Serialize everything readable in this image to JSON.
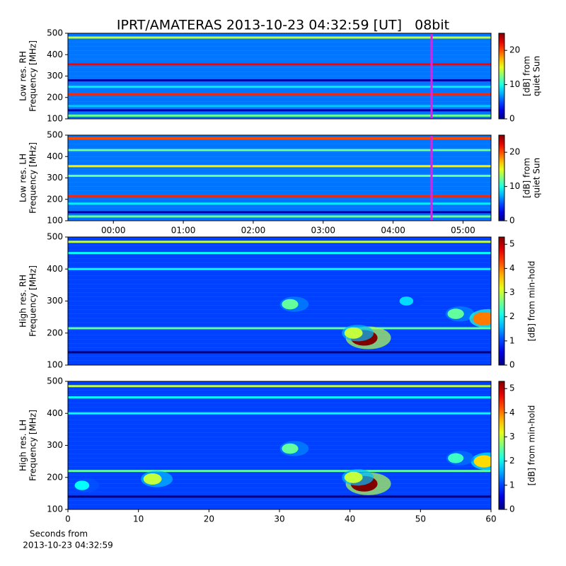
{
  "chart_data": [
    {
      "type": "heatmap",
      "title": "IPRT/AMATERAS 2013-10-23 04:32:59 [UT]   08bit",
      "ylabel": [
        "Low res. RH",
        "Frequency [MHz]"
      ],
      "xlim": [
        -0.65,
        5.4
      ],
      "ylim": [
        100,
        500
      ],
      "yticks": [
        100,
        200,
        300,
        400,
        500
      ],
      "colormap": "jet",
      "clim": [
        0,
        25
      ],
      "cticks": [
        0,
        10,
        20
      ],
      "clabel": [
        "[dB] from",
        "quiet Sun"
      ],
      "background": 6,
      "cursor": 4.55,
      "cursor_color": "#e020e0",
      "bands": {
        "freq": [
          480,
          355,
          280,
          250,
          215,
          160,
          140,
          115
        ],
        "values": [
          14,
          22,
          1,
          9,
          21,
          8,
          1,
          12
        ]
      }
    },
    {
      "type": "heatmap",
      "ylabel": [
        "Low res. LH",
        "Frequency [MHz]"
      ],
      "xlim": [
        -0.65,
        5.4
      ],
      "ylim": [
        100,
        500
      ],
      "yticks": [
        100,
        200,
        300,
        400,
        500
      ],
      "xticks": [
        {
          "value": 0,
          "label": "00:00"
        },
        {
          "value": 1,
          "label": "01:00"
        },
        {
          "value": 2,
          "label": "02:00"
        },
        {
          "value": 3,
          "label": "03:00"
        },
        {
          "value": 4,
          "label": "04:00"
        },
        {
          "value": 5,
          "label": "05:00"
        }
      ],
      "colormap": "jet",
      "clim": [
        0,
        25
      ],
      "cticks": [
        0,
        10,
        20
      ],
      "clabel": [
        "[dB] from",
        "quiet Sun"
      ],
      "background": 6,
      "cursor": 4.55,
      "cursor_color": "#e020e0",
      "bands": {
        "freq": [
          485,
          430,
          355,
          310,
          215,
          180,
          140,
          120
        ],
        "values": [
          20,
          12,
          16,
          12,
          21,
          9,
          1,
          12
        ]
      }
    },
    {
      "type": "heatmap",
      "ylabel": [
        "High res. RH",
        "Frequency [MHz]"
      ],
      "xlim": [
        0,
        60
      ],
      "ylim": [
        100,
        500
      ],
      "yticks": [
        100,
        200,
        300,
        400,
        500
      ],
      "colormap": "jet",
      "clim": [
        0,
        5.3
      ],
      "cticks": [
        0,
        1,
        2,
        3,
        4,
        5
      ],
      "clabel": [
        "[dB] from min-hold"
      ],
      "background": 1,
      "bands": {
        "freq": [
          485,
          450,
          400,
          215,
          140
        ],
        "values": [
          3,
          2,
          2,
          2.5,
          0
        ]
      },
      "bursts": {
        "x": [
          42,
          40.5,
          31.5,
          48,
          55,
          59
        ],
        "y": [
          185,
          200,
          290,
          300,
          260,
          245
        ],
        "values": [
          5.3,
          3,
          2.5,
          1.8,
          2.5,
          4
        ]
      }
    },
    {
      "type": "heatmap",
      "ylabel": [
        "High res. LH",
        "Frequency [MHz]"
      ],
      "xlim": [
        0,
        60
      ],
      "ylim": [
        100,
        500
      ],
      "yticks": [
        100,
        200,
        300,
        400,
        500
      ],
      "xticks": [
        0,
        10,
        20,
        30,
        40,
        50,
        60
      ],
      "xlabel": [
        "Seconds from",
        "2013-10-23 04:32:59"
      ],
      "colormap": "jet",
      "clim": [
        0,
        5.3
      ],
      "cticks": [
        0,
        1,
        2,
        3,
        4,
        5
      ],
      "clabel": [
        "[dB] from min-hold"
      ],
      "background": 1,
      "bands": {
        "freq": [
          485,
          450,
          400,
          220,
          140
        ],
        "values": [
          3,
          2,
          2,
          2.5,
          0
        ]
      },
      "bursts": {
        "x": [
          42,
          31.5,
          40.5,
          59,
          12,
          2,
          55
        ],
        "y": [
          180,
          290,
          200,
          250,
          195,
          175,
          260
        ],
        "values": [
          5.3,
          2.5,
          3,
          3.5,
          3,
          2,
          2.3
        ]
      }
    }
  ]
}
